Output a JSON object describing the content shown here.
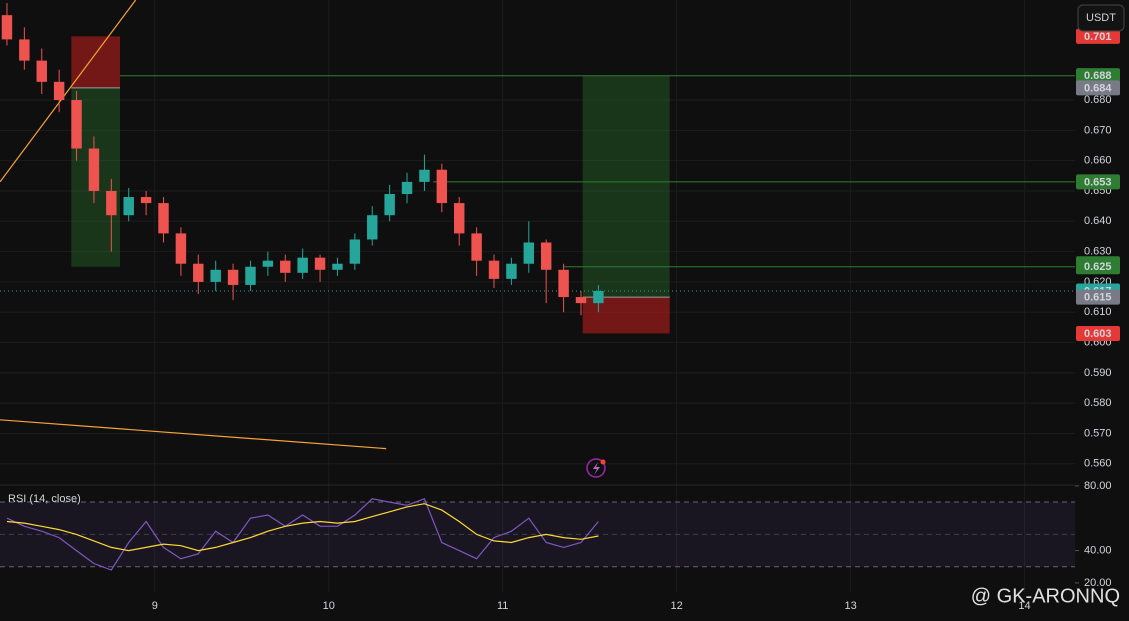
{
  "chart_data": [
    {
      "type": "candlestick",
      "currency": "USDT",
      "xlim": [
        8.11,
        14.29
      ],
      "xticks": [
        9,
        10,
        11,
        12,
        13,
        14
      ],
      "ylim": [
        0.553,
        0.713
      ],
      "yticks": [
        {
          "value": 0.56,
          "label": "0.560"
        },
        {
          "value": 0.57,
          "label": "0.570"
        },
        {
          "value": 0.58,
          "label": "0.580"
        },
        {
          "value": 0.59,
          "label": "0.590"
        },
        {
          "value": 0.6,
          "label": "0.600"
        },
        {
          "value": 0.61,
          "label": "0.610"
        },
        {
          "value": 0.62,
          "label": "0.620"
        },
        {
          "value": 0.63,
          "label": "0.630"
        },
        {
          "value": 0.64,
          "label": "0.640"
        },
        {
          "value": 0.65,
          "label": "0.650"
        },
        {
          "value": 0.66,
          "label": "0.660"
        },
        {
          "value": 0.67,
          "label": "0.670"
        },
        {
          "value": 0.68,
          "label": "0.680"
        }
      ],
      "up_color": "#26a69a",
      "down_color": "#ef5350",
      "candles": {
        "x": [
          8.15,
          8.25,
          8.35,
          8.45,
          8.55,
          8.65,
          8.75,
          8.85,
          8.95,
          9.05,
          9.15,
          9.25,
          9.35,
          9.45,
          9.55,
          9.65,
          9.75,
          9.85,
          9.95,
          10.05,
          10.15,
          10.25,
          10.35,
          10.45,
          10.55,
          10.65,
          10.75,
          10.85,
          10.95,
          11.05,
          11.15,
          11.25,
          11.35,
          11.45,
          11.55
        ],
        "open": [
          0.708,
          0.7,
          0.693,
          0.686,
          0.68,
          0.664,
          0.65,
          0.642,
          0.648,
          0.646,
          0.636,
          0.626,
          0.62,
          0.624,
          0.619,
          0.625,
          0.627,
          0.623,
          0.628,
          0.624,
          0.626,
          0.634,
          0.642,
          0.649,
          0.653,
          0.657,
          0.646,
          0.636,
          0.627,
          0.621,
          0.626,
          0.633,
          0.624,
          0.615,
          0.613
        ],
        "high": [
          0.712,
          0.704,
          0.697,
          0.69,
          0.683,
          0.668,
          0.654,
          0.651,
          0.65,
          0.648,
          0.638,
          0.629,
          0.627,
          0.626,
          0.627,
          0.63,
          0.629,
          0.631,
          0.629,
          0.628,
          0.636,
          0.645,
          0.652,
          0.656,
          0.662,
          0.659,
          0.648,
          0.638,
          0.629,
          0.628,
          0.64,
          0.634,
          0.626,
          0.617,
          0.619
        ],
        "low": [
          0.698,
          0.69,
          0.682,
          0.676,
          0.66,
          0.646,
          0.63,
          0.64,
          0.642,
          0.633,
          0.622,
          0.616,
          0.617,
          0.614,
          0.617,
          0.622,
          0.62,
          0.621,
          0.62,
          0.622,
          0.624,
          0.632,
          0.64,
          0.646,
          0.65,
          0.643,
          0.632,
          0.622,
          0.618,
          0.619,
          0.623,
          0.613,
          0.61,
          0.609,
          0.61
        ],
        "close": [
          0.7,
          0.693,
          0.686,
          0.68,
          0.664,
          0.65,
          0.642,
          0.648,
          0.646,
          0.636,
          0.626,
          0.62,
          0.624,
          0.619,
          0.625,
          0.627,
          0.623,
          0.628,
          0.624,
          0.626,
          0.634,
          0.642,
          0.649,
          0.653,
          0.657,
          0.646,
          0.636,
          0.627,
          0.621,
          0.626,
          0.633,
          0.624,
          0.615,
          0.613,
          0.617
        ]
      },
      "levels": [
        {
          "value": 0.688,
          "x": 8.8,
          "color": "#2e7d32"
        },
        {
          "value": 0.653,
          "x": 10.6,
          "color": "#2e7d32"
        },
        {
          "value": 0.625,
          "x": 11.35,
          "color": "#2e7d32"
        },
        {
          "value": 0.617,
          "x": 8.11,
          "color": "#26a69a"
        }
      ],
      "positions": [
        {
          "x": [
            8.52,
            8.8
          ],
          "stop": 0.701,
          "entry": 0.684,
          "target": 0.625
        },
        {
          "x": [
            11.46,
            11.96
          ],
          "stop": 0.603,
          "entry": 0.615,
          "target": 0.688
        }
      ],
      "trendlines": [
        {
          "color": "#f7a33a",
          "x": [
            8.11,
            8.89
          ],
          "y": [
            0.653,
            0.713
          ]
        },
        {
          "color": "#f7a33a",
          "x": [
            8.11,
            10.33
          ],
          "y": [
            0.5745,
            0.565
          ]
        }
      ],
      "price_tags": [
        {
          "value": 0.701,
          "label": "0.701",
          "color": "#e53935"
        },
        {
          "value": 0.688,
          "label": "0.688",
          "color": "#2e7d32"
        },
        {
          "value": 0.688,
          "label": "0.688",
          "color": "#2e7d32"
        },
        {
          "value": 0.684,
          "label": "0.684",
          "color": "#787b86"
        },
        {
          "value": 0.653,
          "label": "0.653",
          "color": "#2e7d32"
        },
        {
          "value": 0.626,
          "label": "0.626",
          "color": "#2e7d32"
        },
        {
          "value": 0.625,
          "label": "0.625",
          "color": "#2e7d32"
        },
        {
          "value": 0.617,
          "label": "0.617",
          "color": "#26a69a"
        },
        {
          "value": 0.615,
          "label": "0.615",
          "color": "#787b86"
        },
        {
          "value": 0.603,
          "label": "0.603",
          "color": "#e53935"
        }
      ]
    },
    {
      "type": "line",
      "title": "RSI (14, close)",
      "ylim": [
        14.4,
        82.4
      ],
      "yticks": [
        {
          "value": 80,
          "label": "80.00"
        },
        {
          "value": 40,
          "label": "40.00"
        },
        {
          "value": 20,
          "label": "20.00"
        }
      ],
      "bands": [
        30,
        50,
        70
      ],
      "band_color": "#7e57c2",
      "x": [
        8.15,
        8.25,
        8.35,
        8.45,
        8.55,
        8.65,
        8.75,
        8.85,
        8.95,
        9.05,
        9.15,
        9.25,
        9.35,
        9.45,
        9.55,
        9.65,
        9.75,
        9.85,
        9.95,
        10.05,
        10.15,
        10.25,
        10.35,
        10.45,
        10.55,
        10.65,
        10.75,
        10.85,
        10.95,
        11.05,
        11.15,
        11.25,
        11.35,
        11.45,
        11.55
      ],
      "series": [
        {
          "color": "#7e57c2",
          "values": [
            60,
            55,
            52,
            48,
            40,
            32,
            28,
            45,
            58,
            42,
            35,
            38,
            52,
            45,
            60,
            62,
            55,
            62,
            55,
            55,
            62,
            72,
            70,
            68,
            72,
            45,
            40,
            35,
            48,
            52,
            60,
            45,
            42,
            45,
            58
          ]
        },
        {
          "color": "#fdd835",
          "values": [
            58,
            57,
            55,
            53,
            50,
            46,
            42,
            40,
            42,
            44,
            43,
            40,
            42,
            45,
            48,
            52,
            55,
            57,
            58,
            57,
            58,
            61,
            64,
            67,
            69,
            65,
            58,
            50,
            46,
            45,
            48,
            50,
            48,
            47,
            49
          ]
        }
      ]
    }
  ],
  "watermark": "@ GK-ARONNQ"
}
